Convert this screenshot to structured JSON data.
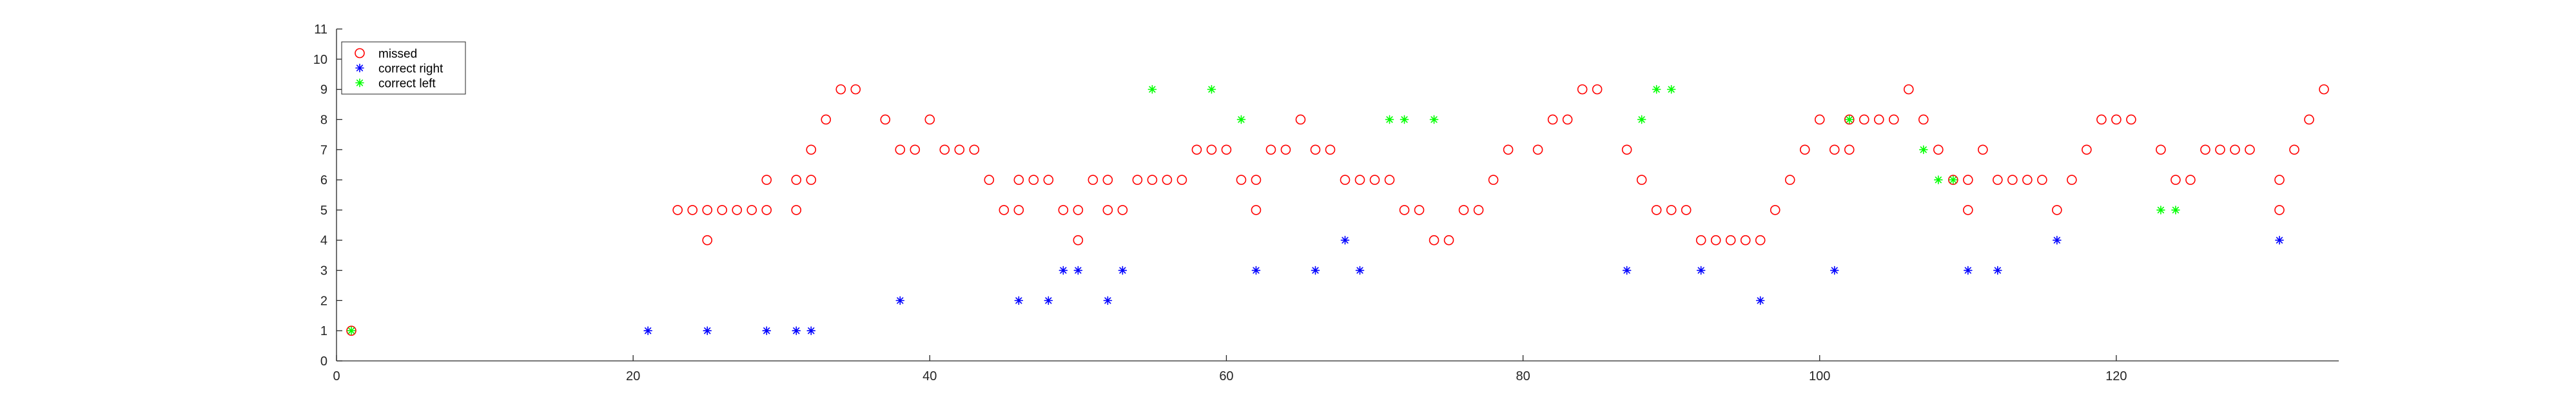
{
  "chart_data": {
    "type": "scatter",
    "title": "",
    "xlabel": "",
    "ylabel": "",
    "xlim": [
      0,
      135
    ],
    "ylim": [
      0,
      11
    ],
    "xticks": [
      0,
      20,
      40,
      60,
      80,
      100,
      120
    ],
    "yticks": [
      0,
      1,
      2,
      3,
      4,
      5,
      6,
      7,
      8,
      9,
      10,
      11
    ],
    "grid": false,
    "legend_position": "top-left",
    "series": [
      {
        "name": "missed",
        "marker": "circle",
        "color": "#ff0000",
        "points": [
          [
            1,
            1
          ],
          [
            23,
            5
          ],
          [
            24,
            5
          ],
          [
            25,
            5
          ],
          [
            25,
            4
          ],
          [
            26,
            5
          ],
          [
            27,
            5
          ],
          [
            28,
            5
          ],
          [
            29,
            5
          ],
          [
            29,
            6
          ],
          [
            31,
            5
          ],
          [
            31,
            6
          ],
          [
            32,
            6
          ],
          [
            32,
            7
          ],
          [
            33,
            8
          ],
          [
            34,
            9
          ],
          [
            35,
            9
          ],
          [
            37,
            8
          ],
          [
            38,
            7
          ],
          [
            39,
            7
          ],
          [
            40,
            8
          ],
          [
            41,
            7
          ],
          [
            42,
            7
          ],
          [
            43,
            7
          ],
          [
            44,
            6
          ],
          [
            45,
            5
          ],
          [
            46,
            5
          ],
          [
            46,
            6
          ],
          [
            47,
            6
          ],
          [
            48,
            6
          ],
          [
            49,
            5
          ],
          [
            50,
            5
          ],
          [
            50,
            4
          ],
          [
            51,
            6
          ],
          [
            52,
            5
          ],
          [
            52,
            6
          ],
          [
            53,
            5
          ],
          [
            54,
            6
          ],
          [
            55,
            6
          ],
          [
            56,
            6
          ],
          [
            57,
            6
          ],
          [
            58,
            7
          ],
          [
            59,
            7
          ],
          [
            60,
            7
          ],
          [
            61,
            6
          ],
          [
            62,
            5
          ],
          [
            62,
            6
          ],
          [
            63,
            7
          ],
          [
            64,
            7
          ],
          [
            65,
            8
          ],
          [
            66,
            7
          ],
          [
            67,
            7
          ],
          [
            68,
            6
          ],
          [
            69,
            6
          ],
          [
            70,
            6
          ],
          [
            71,
            6
          ],
          [
            72,
            5
          ],
          [
            73,
            5
          ],
          [
            74,
            4
          ],
          [
            75,
            4
          ],
          [
            76,
            5
          ],
          [
            77,
            5
          ],
          [
            78,
            6
          ],
          [
            79,
            7
          ],
          [
            81,
            7
          ],
          [
            82,
            8
          ],
          [
            83,
            8
          ],
          [
            84,
            9
          ],
          [
            85,
            9
          ],
          [
            87,
            7
          ],
          [
            88,
            6
          ],
          [
            89,
            5
          ],
          [
            90,
            5
          ],
          [
            91,
            5
          ],
          [
            92,
            4
          ],
          [
            93,
            4
          ],
          [
            94,
            4
          ],
          [
            95,
            4
          ],
          [
            96,
            4
          ],
          [
            97,
            5
          ],
          [
            98,
            6
          ],
          [
            99,
            7
          ],
          [
            100,
            8
          ],
          [
            101,
            7
          ],
          [
            102,
            7
          ],
          [
            102,
            8
          ],
          [
            103,
            8
          ],
          [
            104,
            8
          ],
          [
            105,
            8
          ],
          [
            106,
            9
          ],
          [
            107,
            8
          ],
          [
            108,
            7
          ],
          [
            109,
            6
          ],
          [
            110,
            6
          ],
          [
            110,
            5
          ],
          [
            111,
            7
          ],
          [
            112,
            6
          ],
          [
            113,
            6
          ],
          [
            114,
            6
          ],
          [
            115,
            6
          ],
          [
            116,
            5
          ],
          [
            117,
            6
          ],
          [
            118,
            7
          ],
          [
            119,
            8
          ],
          [
            120,
            8
          ],
          [
            121,
            8
          ],
          [
            123,
            7
          ],
          [
            124,
            6
          ],
          [
            125,
            6
          ],
          [
            126,
            7
          ],
          [
            127,
            7
          ],
          [
            128,
            7
          ],
          [
            129,
            7
          ],
          [
            131,
            6
          ],
          [
            131,
            5
          ],
          [
            132,
            7
          ],
          [
            133,
            8
          ],
          [
            134,
            9
          ]
        ]
      },
      {
        "name": "correct right",
        "marker": "asterisk",
        "color": "#0000ff",
        "points": [
          [
            21,
            1
          ],
          [
            25,
            1
          ],
          [
            29,
            1
          ],
          [
            31,
            1
          ],
          [
            32,
            1
          ],
          [
            38,
            2
          ],
          [
            46,
            2
          ],
          [
            48,
            2
          ],
          [
            49,
            3
          ],
          [
            50,
            3
          ],
          [
            52,
            2
          ],
          [
            53,
            3
          ],
          [
            62,
            3
          ],
          [
            66,
            3
          ],
          [
            68,
            4
          ],
          [
            69,
            3
          ],
          [
            87,
            3
          ],
          [
            92,
            3
          ],
          [
            96,
            2
          ],
          [
            101,
            3
          ],
          [
            110,
            3
          ],
          [
            112,
            3
          ],
          [
            116,
            4
          ],
          [
            131,
            4
          ]
        ]
      },
      {
        "name": "correct left",
        "marker": "asterisk",
        "color": "#00ff00",
        "points": [
          [
            1,
            1
          ],
          [
            55,
            9
          ],
          [
            59,
            9
          ],
          [
            61,
            8
          ],
          [
            71,
            8
          ],
          [
            72,
            8
          ],
          [
            74,
            8
          ],
          [
            88,
            8
          ],
          [
            89,
            9
          ],
          [
            90,
            9
          ],
          [
            102,
            8
          ],
          [
            107,
            7
          ],
          [
            108,
            6
          ],
          [
            109,
            6
          ],
          [
            123,
            5
          ],
          [
            124,
            5
          ]
        ]
      }
    ]
  }
}
